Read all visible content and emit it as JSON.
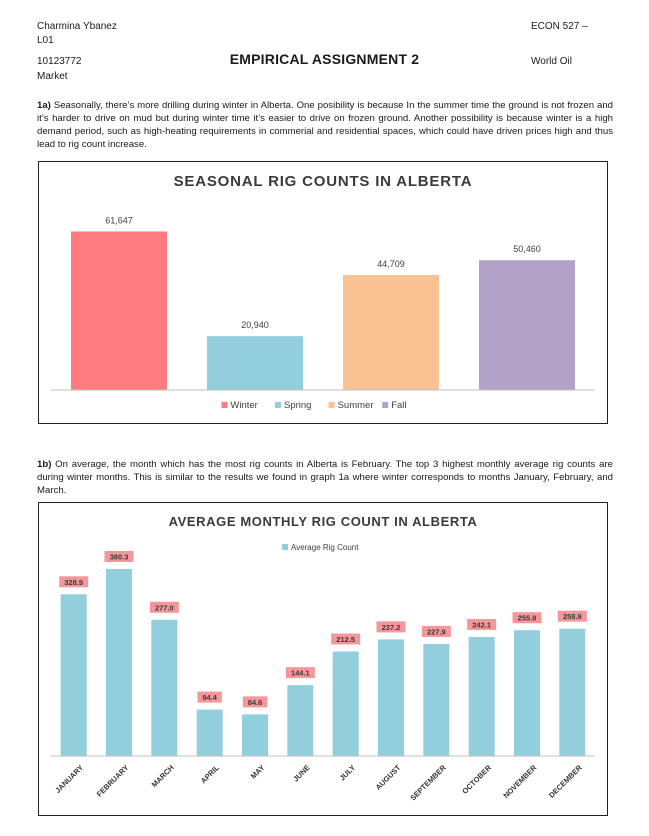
{
  "header": {
    "name": "Charmina Ybanez",
    "section": "L01",
    "student_id": "10123772",
    "course": "ECON 527 –",
    "topic_right": "World Oil",
    "topic_left": "Market",
    "title": "EMPIRICAL ASSIGNMENT 2"
  },
  "para1": {
    "label": "1a)",
    "text": "Seasonally, there’s more drilling during winter in Alberta. One posibility is because In the summer time the ground is not frozen and it’s harder to drive on mud but during winter time it’s easier to drive on frozen ground. Another possibility is because winter is a high demand period, such as high-heating requirements in commerial and residential spaces, which could have driven prices high and thus lead to rig count increase."
  },
  "para2": {
    "label": "1b)",
    "text": "On average, the month which has the most rig counts in Alberta is February. The top 3 highest monthly average rig counts are during winter months. This is similar to the results we found in graph 1a where winter corresponds to months January, February, and March."
  },
  "chart_data": [
    {
      "type": "bar",
      "title": "SEASONAL RIG COUNTS IN ALBERTA",
      "categories": [
        "Winter",
        "Spring",
        "Summer",
        "Fall"
      ],
      "values": [
        61647,
        20940,
        44709,
        50460
      ],
      "value_labels": [
        "61,647",
        "20,940",
        "44,709",
        "50,460"
      ],
      "colors": [
        "#ff7b7f",
        "#93cedd",
        "#f9c293",
        "#b2a2c8"
      ],
      "ylim": [
        0,
        70000
      ],
      "legend_placement": "bottom",
      "grid": false
    },
    {
      "type": "bar",
      "title": "AVERAGE MONTHLY RIG COUNT IN ALBERTA",
      "categories": [
        "JANUARY",
        "FEBRUARY",
        "MARCH",
        "APRIL",
        "MAY",
        "JUNE",
        "JULY",
        "AUGUST",
        "SEPTEMBER",
        "OCTOBER",
        "NOVEMBER",
        "DECEMBER"
      ],
      "series": [
        {
          "name": "Average Rig Count",
          "values": [
            328.9,
            380.3,
            277.0,
            94.4,
            84.6,
            144.1,
            212.5,
            237.2,
            227.9,
            242.1,
            255.8,
            258.9
          ]
        }
      ],
      "value_labels": [
        "328.9",
        "380.3",
        "277.0",
        "94.4",
        "84.6",
        "144.1",
        "212.5",
        "237.2",
        "227.9",
        "242.1",
        "255.8",
        "258.9"
      ],
      "bar_color": "#93cedd",
      "label_bg_color": "#f4969a",
      "ylim": [
        0,
        420
      ],
      "legend_placement": "top",
      "grid": false
    }
  ]
}
